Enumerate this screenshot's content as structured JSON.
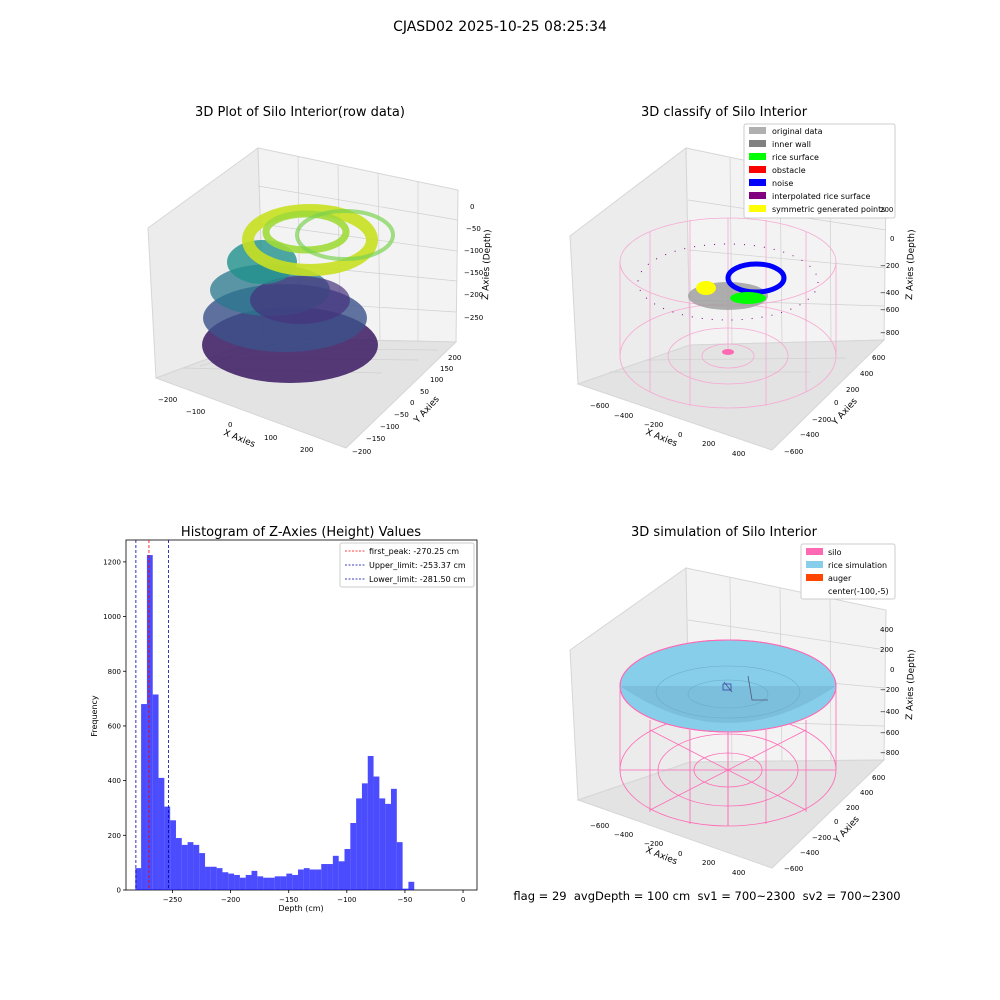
{
  "figure": {
    "suptitle": "CJASD02 2025-10-25 08:25:34"
  },
  "panels": {
    "raw": {
      "title": "3D Plot of Silo Interior(row data)",
      "xlabel": "X Axies",
      "ylabel": "Y Axies",
      "zlabel": "Z Axies (Depth)",
      "xticks": [
        "−200",
        "−100",
        "0",
        "100",
        "200"
      ],
      "yticks": [
        "200",
        "150",
        "100",
        "50",
        "0",
        "−50",
        "−100",
        "−150",
        "−200"
      ],
      "zticks": [
        "0",
        "−50",
        "−100",
        "−150",
        "−200",
        "−250"
      ]
    },
    "classify": {
      "title": "3D classify of Silo Interior",
      "xlabel": "X Axies",
      "ylabel": "Y Axies",
      "zlabel": "Z Axies (Depth)",
      "xticks": [
        "−600",
        "−400",
        "−200",
        "0",
        "200",
        "400"
      ],
      "yticks": [
        "600",
        "400",
        "200",
        "0",
        "−200",
        "−400",
        "−600"
      ],
      "zticks": [
        "200",
        "0",
        "−200",
        "−400",
        "−600",
        "−800"
      ],
      "legend": [
        {
          "label": "original data",
          "color": "#b0b0b0"
        },
        {
          "label": "inner wall",
          "color": "#808080"
        },
        {
          "label": "rice surface",
          "color": "#00ff00"
        },
        {
          "label": "obstacle",
          "color": "#ff0000"
        },
        {
          "label": "noise",
          "color": "#0000ff"
        },
        {
          "label": "interpolated rice surface",
          "color": "#800080"
        },
        {
          "label": "symmetric generated points",
          "color": "#ffff00"
        }
      ]
    },
    "simulation": {
      "title": "3D simulation of Silo Interior",
      "xlabel": "X Axies",
      "ylabel": "Y Axies",
      "zlabel": "Z Axies (Depth)",
      "xticks": [
        "−600",
        "−400",
        "−200",
        "0",
        "200",
        "400"
      ],
      "yticks": [
        "600",
        "400",
        "200",
        "0",
        "−200",
        "−400",
        "−600"
      ],
      "zticks": [
        "400",
        "200",
        "0",
        "−200",
        "−400",
        "−600",
        "−800"
      ],
      "legend": [
        {
          "label": "silo",
          "color": "#ff69b4"
        },
        {
          "label": "rice simulation",
          "color": "#87ceeb"
        },
        {
          "label": "auger",
          "color": "#ff4500"
        },
        {
          "label": "center(-100,-5)",
          "color": ""
        }
      ],
      "status": "flag = 29  avgDepth = 100 cm  sv1 = 700~2300  sv2 = 700~2300"
    }
  },
  "chart_data": [
    {
      "type": "bar",
      "title": "Histogram of Z-Axies (Height) Values",
      "xlabel": "Depth (cm)",
      "ylabel": "Frequency",
      "xlim": [
        -290,
        12
      ],
      "ylim": [
        0,
        1280
      ],
      "xticks": [
        -250,
        -200,
        -150,
        -100,
        -50,
        0
      ],
      "yticks": [
        0,
        200,
        400,
        600,
        800,
        1000,
        1200
      ],
      "bin_start": -282,
      "bin_width": 5,
      "values": [
        80,
        680,
        1225,
        715,
        410,
        305,
        255,
        190,
        165,
        175,
        165,
        135,
        85,
        85,
        80,
        65,
        60,
        55,
        45,
        55,
        70,
        50,
        45,
        45,
        50,
        50,
        60,
        55,
        75,
        80,
        75,
        75,
        95,
        95,
        125,
        105,
        150,
        245,
        335,
        390,
        490,
        415,
        335,
        315,
        370,
        175,
        5,
        30
      ],
      "bar_color": "#0000ff",
      "vlines": [
        {
          "label": "first_peak: -270.25 cm",
          "x": -270.25,
          "color": "#ff0000"
        },
        {
          "label": "Upper_limit: -253.37 cm",
          "x": -253.37,
          "color": "#0000aa"
        },
        {
          "label": "Lower_limit: -281.50 cm",
          "x": -281.5,
          "color": "#0000aa"
        }
      ],
      "legend_position": "top-right",
      "grid": false
    }
  ]
}
